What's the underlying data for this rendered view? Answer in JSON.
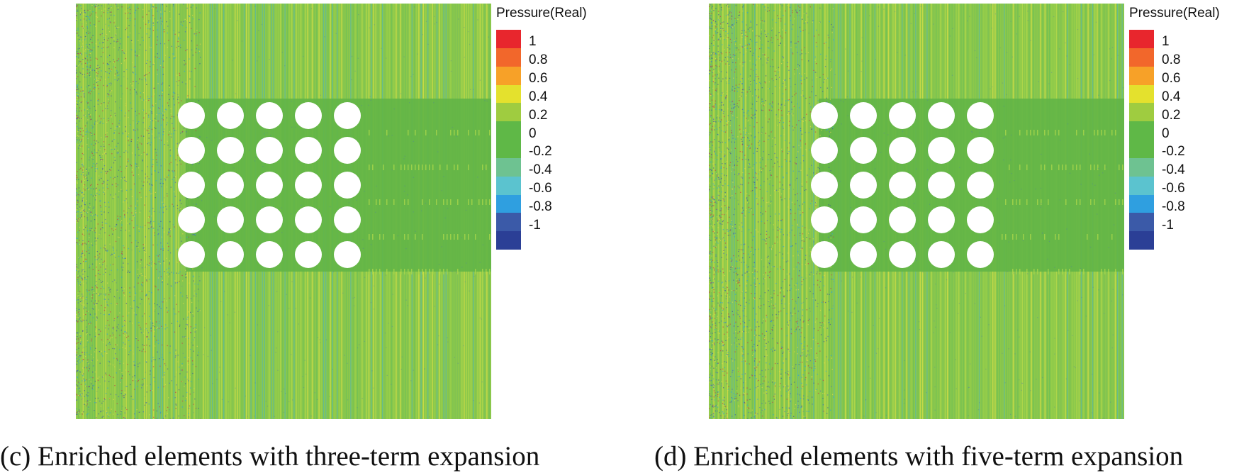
{
  "panels": [
    {
      "caption": "(c) Enriched elements with three-term expansion",
      "legend": {
        "title": "Pressure(Real)",
        "levels": [
          "1",
          "0.8",
          "0.6",
          "0.4",
          "0.2",
          "0",
          "-0.2",
          "-0.4",
          "-0.6",
          "-0.8",
          "-1"
        ],
        "colors": [
          "#e8262d",
          "#f2672b",
          "#f7a128",
          "#e4e12d",
          "#9fcc40",
          "#5fb847",
          "#5fb847",
          "#6ec291",
          "#5bc3cf",
          "#2f9fe0",
          "#3b5aa8",
          "#2b3f96"
        ]
      }
    },
    {
      "caption": "(d) Enriched elements with five-term expansion",
      "legend": {
        "title": "Pressure(Real)",
        "levels": [
          "1",
          "0.8",
          "0.6",
          "0.4",
          "0.2",
          "0",
          "-0.2",
          "-0.4",
          "-0.6",
          "-0.8",
          "-1"
        ],
        "colors": [
          "#e8262d",
          "#f2672b",
          "#f7a128",
          "#e4e12d",
          "#9fcc40",
          "#5fb847",
          "#5fb847",
          "#6ec291",
          "#5bc3cf",
          "#2f9fe0",
          "#3b5aa8",
          "#2b3f96"
        ]
      }
    }
  ],
  "chart_data": [
    {
      "type": "heatmap",
      "title": "(c) Enriched elements with three-term expansion",
      "colorbar_label": "Pressure(Real)",
      "value_range": [
        -1,
        1
      ],
      "levels": [
        1,
        0.8,
        0.6,
        0.4,
        0.2,
        0,
        -0.2,
        -0.4,
        -0.6,
        -0.8,
        -1
      ],
      "scatterer_grid": {
        "rows": 5,
        "cols": 5
      },
      "field_background_value": 0.1
    },
    {
      "type": "heatmap",
      "title": "(d) Enriched elements with five-term expansion",
      "colorbar_label": "Pressure(Real)",
      "value_range": [
        -1,
        1
      ],
      "levels": [
        1,
        0.8,
        0.6,
        0.4,
        0.2,
        0,
        -0.2,
        -0.4,
        -0.6,
        -0.8,
        -1
      ],
      "scatterer_grid": {
        "rows": 5,
        "cols": 5
      },
      "field_background_value": 0.1
    }
  ]
}
